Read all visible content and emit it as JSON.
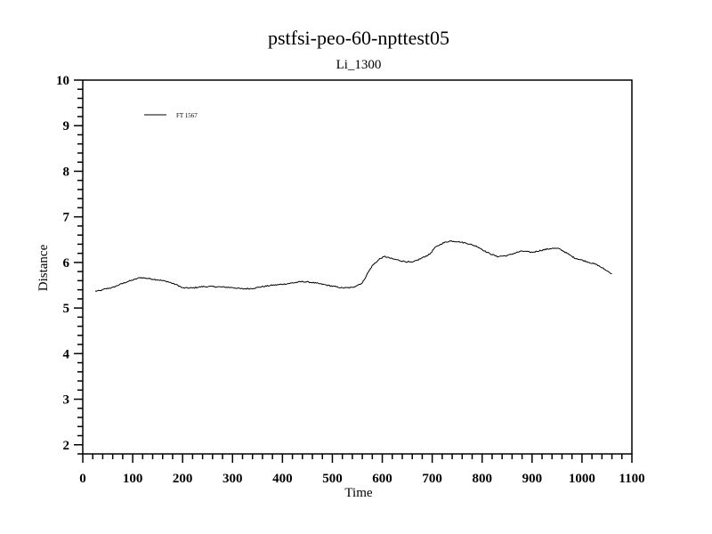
{
  "chart_data": {
    "type": "line",
    "title": "pstfsi-peo-60-npttest05",
    "subtitle": "Li_1300",
    "xlabel": "Time",
    "ylabel": "Distance",
    "xlim": [
      0,
      1100
    ],
    "ylim": [
      1.8,
      10
    ],
    "xticks": [
      0,
      100,
      200,
      300,
      400,
      500,
      600,
      700,
      800,
      900,
      1000,
      1100
    ],
    "yticks": [
      2,
      3,
      4,
      5,
      6,
      7,
      8,
      9,
      10
    ],
    "grid": false,
    "legend_position": "top-left",
    "series": [
      {
        "name": "FT 1567",
        "color": "#000000",
        "x": [
          25,
          35,
          45,
          60,
          75,
          90,
          105,
          115,
          130,
          150,
          170,
          190,
          200,
          220,
          240,
          260,
          280,
          300,
          320,
          340,
          360,
          380,
          400,
          420,
          440,
          460,
          480,
          500,
          520,
          540,
          560,
          570,
          580,
          595,
          605,
          620,
          640,
          660,
          680,
          695,
          705,
          720,
          735,
          750,
          770,
          790,
          810,
          830,
          850,
          870,
          880,
          900,
          920,
          940,
          955,
          970,
          985,
          1000,
          1015,
          1030,
          1045,
          1060
        ],
        "y": [
          5.37,
          5.38,
          5.42,
          5.45,
          5.52,
          5.58,
          5.63,
          5.67,
          5.65,
          5.62,
          5.58,
          5.5,
          5.44,
          5.44,
          5.47,
          5.47,
          5.46,
          5.45,
          5.42,
          5.43,
          5.47,
          5.5,
          5.52,
          5.55,
          5.58,
          5.56,
          5.52,
          5.48,
          5.44,
          5.45,
          5.55,
          5.75,
          5.93,
          6.08,
          6.13,
          6.08,
          6.03,
          6.0,
          6.1,
          6.18,
          6.32,
          6.42,
          6.47,
          6.46,
          6.42,
          6.35,
          6.22,
          6.13,
          6.15,
          6.22,
          6.25,
          6.22,
          6.27,
          6.31,
          6.3,
          6.2,
          6.1,
          6.05,
          6.0,
          5.95,
          5.85,
          5.75
        ]
      }
    ]
  }
}
